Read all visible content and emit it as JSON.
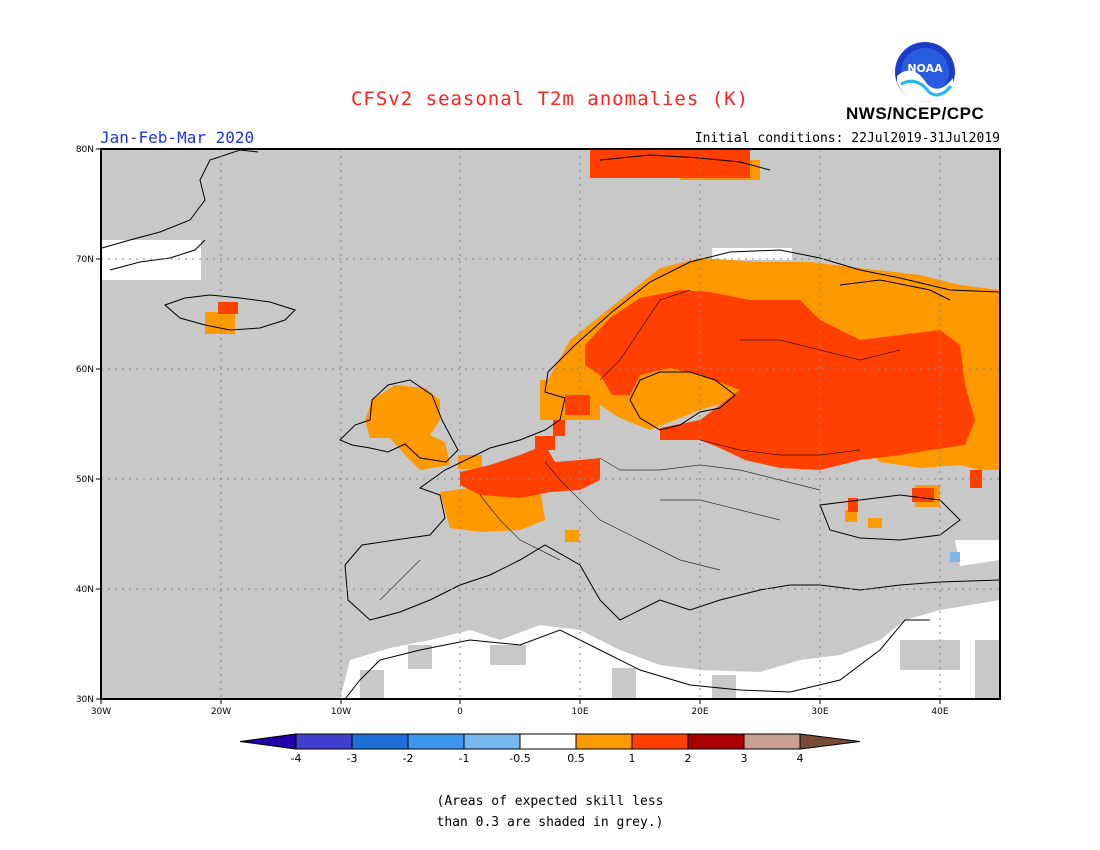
{
  "header": {
    "title": "CFSv2 seasonal T2m anomalies (K)",
    "agency": "NWS/NCEP/CPC",
    "logo_text": "NOAA",
    "period": "Jan-Feb-Mar 2020",
    "initial_conditions": "Initial conditions: 22Jul2019-31Jul2019"
  },
  "map": {
    "lat_labels": [
      "80N",
      "70N",
      "60N",
      "50N",
      "40N",
      "30N"
    ],
    "lon_labels": [
      "30W",
      "20W",
      "10W",
      "0",
      "10E",
      "20E",
      "30E",
      "40E"
    ],
    "background_color": "#c8c8c8"
  },
  "legend": {
    "labels": [
      "-4",
      "-3",
      "-2",
      "-1",
      "-0.5",
      "0.5",
      "1",
      "2",
      "3",
      "4"
    ],
    "colors": [
      "#2200aa",
      "#4040d0",
      "#1e6ed8",
      "#3c96f0",
      "#78b8f0",
      "#ffffff",
      "#ff9900",
      "#ff4000",
      "#a80000",
      "#c8a090",
      "#7a4a38"
    ]
  },
  "footnote": {
    "line1": "(Areas of expected skill less",
    "line2": "than 0.3 are shaded in grey.)"
  }
}
